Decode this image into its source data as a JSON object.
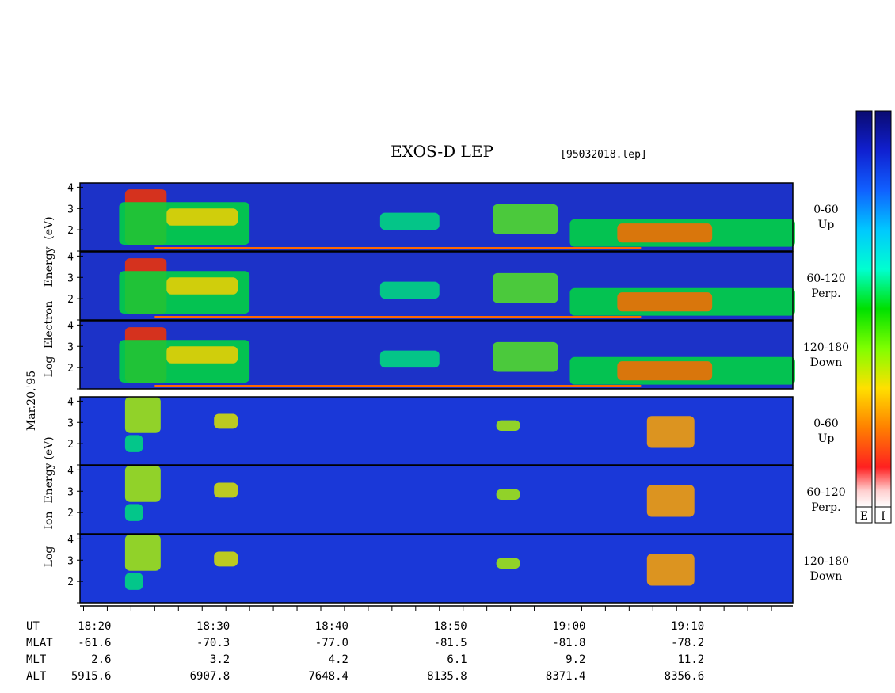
{
  "title": "EXOS-D LEP",
  "file_label": "[95032018.lep]",
  "date_label": "Mar.20,'95",
  "electron_axis_label": [
    "Log",
    "Electron",
    "Energy",
    "(eV)"
  ],
  "ion_axis_label": [
    "Log",
    "Ion",
    "Energy",
    "(eV)"
  ],
  "colorbar_labels": [
    "E",
    "I"
  ],
  "chart_data": {
    "type": "heatmap",
    "title": "EXOS-D LEP",
    "x_ticks": [
      "18:20",
      "18:30",
      "18:40",
      "18:50",
      "19:00",
      "19:10"
    ],
    "x_tick_minutes": [
      20,
      30,
      40,
      50,
      60,
      70
    ],
    "x_range_minutes": [
      18.7,
      78.8
    ],
    "y_ticks": [
      "1",
      "2",
      "3",
      "4"
    ],
    "y_range": [
      1,
      4.2
    ],
    "panels": [
      {
        "species": "Electron",
        "pitch": "0-60",
        "direction": "Up"
      },
      {
        "species": "Electron",
        "pitch": "60-120",
        "direction": "Perp."
      },
      {
        "species": "Electron",
        "pitch": "120-180",
        "direction": "Down"
      },
      {
        "species": "Ion",
        "pitch": "0-60",
        "direction": "Up"
      },
      {
        "species": "Ion",
        "pitch": "60-120",
        "direction": "Perp."
      },
      {
        "species": "Ion",
        "pitch": "120-180",
        "direction": "Down"
      }
    ],
    "ephemeris": {
      "rows": [
        {
          "label": "UT",
          "values": [
            "18:20",
            "18:30",
            "18:40",
            "18:50",
            "19:00",
            "19:10"
          ]
        },
        {
          "label": "MLAT",
          "values": [
            "-61.6",
            "-70.3",
            "-77.0",
            "-81.5",
            "-81.8",
            "-78.2"
          ]
        },
        {
          "label": "MLT",
          "values": [
            "2.6",
            "3.2",
            "4.2",
            "6.1",
            "9.2",
            "11.2"
          ]
        },
        {
          "label": "ALT",
          "values": [
            "5915.6",
            "6907.8",
            "7648.4",
            "8135.8",
            "8371.4",
            "8356.6"
          ]
        }
      ]
    },
    "electron_features": [
      {
        "t0": 22.5,
        "t1": 26.0,
        "e0": 1.3,
        "e1": 3.9,
        "level": 0.95
      },
      {
        "t0": 22.0,
        "t1": 33.0,
        "e0": 1.3,
        "e1": 3.3,
        "level": 0.6
      },
      {
        "t0": 26.0,
        "t1": 32.0,
        "e0": 2.2,
        "e1": 3.0,
        "level": 0.8
      },
      {
        "t0": 44.0,
        "t1": 49.0,
        "e0": 2.0,
        "e1": 2.8,
        "level": 0.55
      },
      {
        "t0": 53.5,
        "t1": 59.0,
        "e0": 1.8,
        "e1": 3.2,
        "level": 0.65
      },
      {
        "t0": 60.0,
        "t1": 79.0,
        "e0": 1.2,
        "e1": 2.5,
        "level": 0.6
      },
      {
        "t0": 64.0,
        "t1": 72.0,
        "e0": 1.4,
        "e1": 2.3,
        "level": 0.9
      }
    ],
    "ion_features": [
      {
        "t0": 22.5,
        "t1": 25.5,
        "e0": 2.5,
        "e1": 4.2,
        "level": 0.7
      },
      {
        "t0": 22.5,
        "t1": 24.0,
        "e0": 1.6,
        "e1": 2.4,
        "level": 0.55
      },
      {
        "t0": 30.0,
        "t1": 32.0,
        "e0": 2.7,
        "e1": 3.4,
        "level": 0.75
      },
      {
        "t0": 53.8,
        "t1": 55.8,
        "e0": 2.6,
        "e1": 3.1,
        "level": 0.7
      },
      {
        "t0": 66.5,
        "t1": 70.5,
        "e0": 1.8,
        "e1": 3.3,
        "level": 0.85
      }
    ]
  }
}
